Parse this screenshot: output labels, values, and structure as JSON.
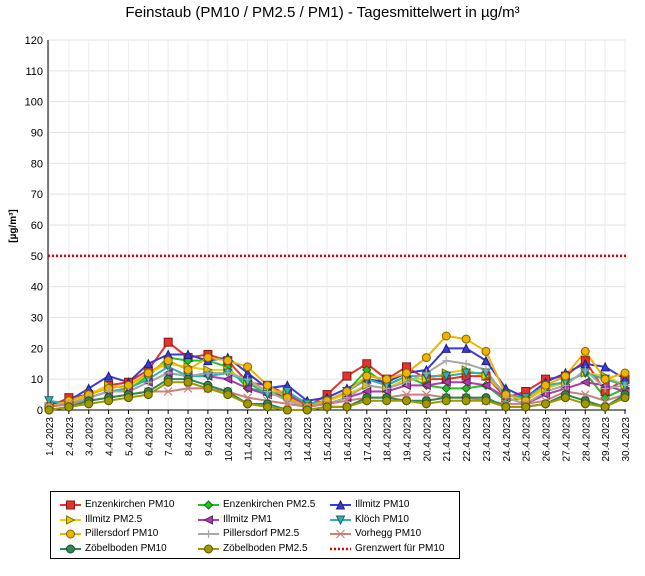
{
  "title": "Feinstaub (PM10 / PM2.5 / PM1) -  Tagesmittelwert in µg/m³",
  "chart_data": {
    "type": "line",
    "title": "Feinstaub (PM10 / PM2.5 / PM1) -  Tagesmittelwert in µg/m³",
    "ylabel": "[µg/m³]",
    "xlabel": "",
    "ylim": [
      0,
      120
    ],
    "yticks": [
      0,
      10,
      20,
      30,
      40,
      50,
      60,
      70,
      80,
      90,
      100,
      110,
      120
    ],
    "grid": true,
    "legend_position": "bottom",
    "categories": [
      "1.4.2023",
      "2.4.2023",
      "3.4.2023",
      "4.4.2023",
      "5.4.2023",
      "6.4.2023",
      "7.4.2023",
      "8.4.2023",
      "9.4.2023",
      "10.4.2023",
      "11.4.2023",
      "12.4.2023",
      "13.4.2023",
      "14.4.2023",
      "15.4.2023",
      "16.4.2023",
      "17.4.2023",
      "18.4.2023",
      "19.4.2023",
      "20.4.2023",
      "21.4.2023",
      "22.4.2023",
      "23.4.2023",
      "24.4.2023",
      "25.4.2023",
      "26.4.2023",
      "27.4.2023",
      "28.4.2023",
      "29.4.2023",
      "30.4.2023"
    ],
    "series": [
      {
        "name": "Enzenkirchen PM10",
        "color": "#e8312a",
        "marker": "square",
        "values": [
          1,
          4,
          5,
          8,
          9,
          13,
          22,
          17,
          18,
          16,
          9,
          8,
          5,
          1,
          5,
          11,
          15,
          10,
          14,
          10,
          10,
          11,
          11,
          4,
          6,
          10,
          11,
          16,
          6,
          10
        ]
      },
      {
        "name": "Enzenkirchen PM2.5",
        "color": "#22c322",
        "marker": "diamond",
        "values": [
          1,
          2,
          4,
          6,
          7,
          11,
          17,
          16,
          16,
          14,
          7,
          6,
          4,
          1,
          3,
          6,
          13,
          8,
          11,
          8,
          7,
          7,
          8,
          3,
          4,
          7,
          9,
          12,
          4,
          7
        ]
      },
      {
        "name": "Illmitz PM10",
        "color": "#3a3ad8",
        "marker": "triangle-up",
        "values": [
          2,
          3,
          7,
          11,
          9,
          15,
          18,
          18,
          16,
          17,
          12,
          7,
          8,
          3,
          4,
          7,
          10,
          9,
          12,
          13,
          20,
          20,
          16,
          7,
          4,
          9,
          12,
          15,
          14,
          10
        ]
      },
      {
        "name": "Illmitz PM2.5",
        "color": "#e6d000",
        "marker": "triangle-right",
        "values": [
          1,
          2,
          5,
          8,
          7,
          12,
          15,
          14,
          13,
          13,
          9,
          6,
          6,
          2,
          3,
          5,
          8,
          7,
          10,
          10,
          12,
          13,
          11,
          5,
          3,
          7,
          9,
          12,
          11,
          8
        ]
      },
      {
        "name": "Illmitz PM1",
        "color": "#b03cb0",
        "marker": "triangle-left",
        "values": [
          1,
          2,
          4,
          6,
          6,
          9,
          12,
          11,
          11,
          10,
          7,
          5,
          5,
          2,
          2,
          4,
          6,
          6,
          8,
          8,
          9,
          9,
          8,
          4,
          2,
          5,
          7,
          9,
          8,
          6
        ]
      },
      {
        "name": "Klöch PM10",
        "color": "#33b0b0",
        "marker": "triangle-down",
        "values": [
          3,
          2,
          4,
          6,
          7,
          10,
          14,
          11,
          11,
          12,
          9,
          5,
          6,
          2,
          3,
          6,
          10,
          8,
          11,
          11,
          11,
          12,
          12,
          5,
          4,
          8,
          9,
          12,
          10,
          8
        ]
      },
      {
        "name": "Pillersdorf PM10",
        "color": "#f0b400",
        "marker": "circle",
        "values": [
          1,
          3,
          5,
          7,
          8,
          12,
          16,
          13,
          17,
          16,
          14,
          8,
          4,
          1,
          3,
          6,
          11,
          10,
          12,
          17,
          24,
          23,
          19,
          5,
          3,
          8,
          11,
          19,
          10,
          12
        ]
      },
      {
        "name": "Pillersdorf PM2.5",
        "color": "#a8a8a8",
        "marker": "plus",
        "values": [
          1,
          2,
          4,
          6,
          6,
          9,
          12,
          11,
          12,
          12,
          10,
          6,
          3,
          1,
          2,
          4,
          8,
          7,
          9,
          12,
          16,
          15,
          13,
          4,
          2,
          6,
          8,
          13,
          7,
          8
        ]
      },
      {
        "name": "Vorhegg PM10",
        "color": "#c88080",
        "marker": "x",
        "values": [
          1,
          2,
          3,
          4,
          5,
          6,
          6,
          7,
          7,
          6,
          4,
          3,
          2,
          1,
          2,
          3,
          4,
          4,
          5,
          5,
          4,
          4,
          3,
          2,
          2,
          3,
          6,
          5,
          3,
          5
        ]
      },
      {
        "name": "Zöbelboden PM10",
        "color": "#2e8a50",
        "marker": "circle",
        "values": [
          0,
          1,
          3,
          4,
          5,
          6,
          10,
          10,
          8,
          6,
          2,
          2,
          0,
          0,
          1,
          1,
          4,
          4,
          3,
          3,
          4,
          4,
          4,
          1,
          1,
          2,
          5,
          3,
          1,
          5
        ]
      },
      {
        "name": "Zöbelboden PM2.5",
        "color": "#a09a00",
        "marker": "circle",
        "values": [
          0,
          1,
          2,
          3,
          4,
          5,
          9,
          9,
          7,
          5,
          2,
          1,
          0,
          0,
          1,
          1,
          3,
          3,
          3,
          2,
          3,
          3,
          3,
          1,
          1,
          2,
          4,
          2,
          1,
          4
        ]
      }
    ],
    "threshold": {
      "name": "Grenzwert für PM10",
      "value": 50,
      "color": "#e00000"
    }
  },
  "legend": [
    "Enzenkirchen PM10",
    "Enzenkirchen PM2.5",
    "Illmitz PM10",
    "Illmitz PM2.5",
    "Illmitz PM1",
    "Klöch PM10",
    "Pillersdorf PM10",
    "Pillersdorf PM2.5",
    "Vorhegg PM10",
    "Zöbelboden PM10",
    "Zöbelboden PM2.5",
    "Grenzwert für PM10"
  ]
}
